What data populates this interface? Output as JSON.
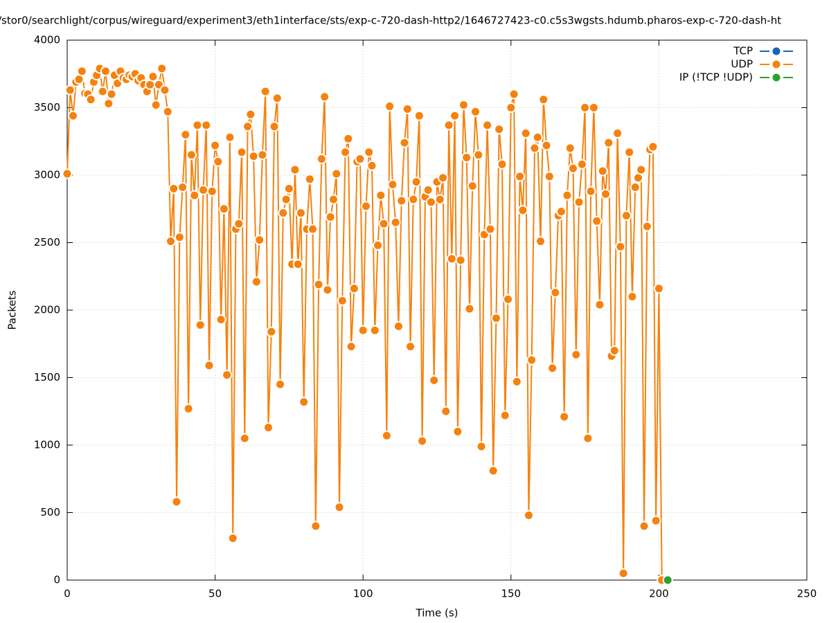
{
  "chart_data": {
    "type": "line",
    "title": "/stor0/searchlight/corpus/wireguard/experiment3/eth1interface/sts/exp-c-720-dash-http2/1646727423-c0.c5s3wgsts.hdumb.pharos-exp-c-720-dash-ht",
    "x_label": "Time (s)",
    "y_label": "Packets",
    "xlim": [
      0,
      250
    ],
    "xticks": [
      0,
      50,
      100,
      150,
      200,
      250
    ],
    "ylim": [
      0,
      4000
    ],
    "yticks": [
      0,
      500,
      1000,
      1500,
      2000,
      2500,
      3000,
      3500,
      4000
    ],
    "grid": true,
    "legend": "top-right",
    "series": [
      {
        "name": "TCP",
        "color": "#1964b4",
        "x": [
          203
        ],
        "values": [
          0
        ]
      },
      {
        "name": "UDP",
        "color": "#f5820f",
        "x": [
          0,
          1,
          2,
          3,
          4,
          5,
          6,
          7,
          8,
          9,
          10,
          11,
          12,
          13,
          14,
          15,
          16,
          17,
          18,
          19,
          20,
          21,
          22,
          23,
          24,
          25,
          26,
          27,
          28,
          29,
          30,
          31,
          32,
          33,
          34,
          35,
          36,
          37,
          38,
          39,
          40,
          41,
          42,
          43,
          44,
          45,
          46,
          47,
          48,
          49,
          50,
          51,
          52,
          53,
          54,
          55,
          56,
          57,
          58,
          59,
          60,
          61,
          62,
          63,
          64,
          65,
          66,
          67,
          68,
          69,
          70,
          71,
          72,
          73,
          74,
          75,
          76,
          77,
          78,
          79,
          80,
          81,
          82,
          83,
          84,
          85,
          86,
          87,
          88,
          89,
          90,
          91,
          92,
          93,
          94,
          95,
          96,
          97,
          98,
          99,
          100,
          101,
          102,
          103,
          104,
          105,
          106,
          107,
          108,
          109,
          110,
          111,
          112,
          113,
          114,
          115,
          116,
          117,
          118,
          119,
          120,
          121,
          122,
          123,
          124,
          125,
          126,
          127,
          128,
          129,
          130,
          131,
          132,
          133,
          134,
          135,
          136,
          137,
          138,
          139,
          140,
          141,
          142,
          143,
          144,
          145,
          146,
          147,
          148,
          149,
          150,
          151,
          152,
          153,
          154,
          155,
          156,
          157,
          158,
          159,
          160,
          161,
          162,
          163,
          164,
          165,
          166,
          167,
          168,
          169,
          170,
          171,
          172,
          173,
          174,
          175,
          176,
          177,
          178,
          179,
          180,
          181,
          182,
          183,
          184,
          185,
          186,
          187,
          188,
          189,
          190,
          191,
          192,
          193,
          194,
          195,
          196,
          197,
          198,
          199,
          200,
          201
        ],
        "values": [
          3010,
          3630,
          3440,
          3690,
          3710,
          3770,
          3605,
          3600,
          3560,
          3690,
          3740,
          3790,
          3620,
          3770,
          3530,
          3600,
          3740,
          3680,
          3770,
          3720,
          3710,
          3740,
          3730,
          3750,
          3700,
          3720,
          3670,
          3620,
          3670,
          3730,
          3520,
          3670,
          3790,
          3630,
          3470,
          2510,
          2900,
          580,
          2540,
          2910,
          3300,
          1270,
          3150,
          2850,
          3370,
          1890,
          2890,
          3370,
          1590,
          2880,
          3220,
          3100,
          1930,
          2750,
          1520,
          3280,
          310,
          2600,
          2640,
          3170,
          1050,
          3360,
          3450,
          3140,
          2210,
          2520,
          3150,
          3620,
          1130,
          1840,
          3360,
          3570,
          1450,
          2720,
          2820,
          2900,
          2340,
          3040,
          2340,
          2720,
          1320,
          2600,
          2970,
          2600,
          400,
          2190,
          3120,
          3580,
          2150,
          2690,
          2820,
          3010,
          540,
          2070,
          3170,
          3270,
          1730,
          2160,
          3100,
          3120,
          1850,
          2770,
          3170,
          3070,
          1850,
          2480,
          2850,
          2640,
          1070,
          3510,
          2930,
          2650,
          1880,
          2810,
          3240,
          3490,
          1730,
          2820,
          2950,
          3440,
          1030,
          2840,
          2890,
          2800,
          1480,
          2950,
          2820,
          2980,
          1250,
          3370,
          2380,
          3440,
          1100,
          2370,
          3520,
          3130,
          2010,
          2920,
          3470,
          3150,
          990,
          2560,
          3370,
          2600,
          810,
          1940,
          3340,
          3080,
          1220,
          2080,
          3500,
          3600,
          1470,
          2990,
          2740,
          3310,
          480,
          1630,
          3200,
          3280,
          2510,
          3560,
          3220,
          2990,
          1570,
          2130,
          2700,
          2730,
          1210,
          2850,
          3200,
          3050,
          1670,
          2800,
          3080,
          3500,
          1050,
          2880,
          3500,
          2660,
          2040,
          3030,
          2860,
          3240,
          1660,
          1700,
          3310,
          2470,
          50,
          2700,
          3170,
          2100,
          2910,
          2980,
          3040,
          400,
          2620,
          3190,
          3210,
          440,
          2160,
          0
        ]
      },
      {
        "name": "IP (!TCP  !UDP)",
        "color": "#2ca02c",
        "x": [
          203
        ],
        "values": [
          0
        ]
      }
    ]
  }
}
